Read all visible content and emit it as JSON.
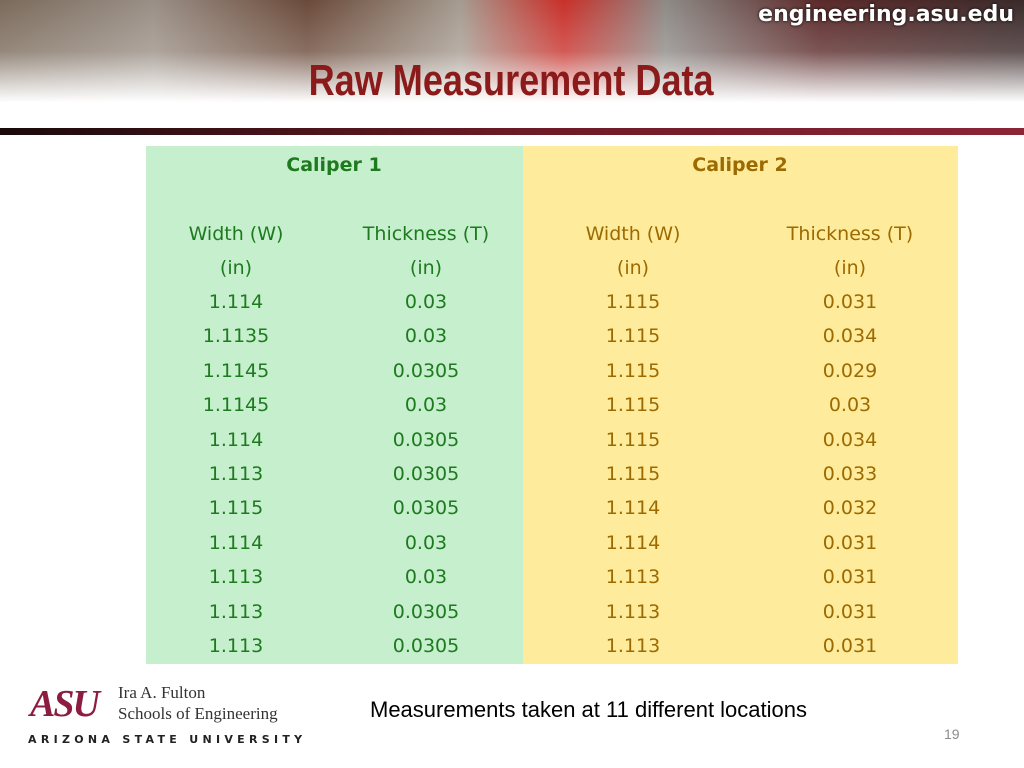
{
  "header": {
    "site": "engineering.asu.edu",
    "title": "Raw Measurement Data"
  },
  "table": {
    "groups": [
      "Caliper 1",
      "Caliper 2"
    ],
    "columns": [
      [
        "Width (W)",
        "(in)"
      ],
      [
        "Thickness (T)",
        "(in)"
      ],
      [
        "Width (W)",
        "(in)"
      ],
      [
        "Thickness (T)",
        "(in)"
      ]
    ],
    "rows": [
      [
        "1.114",
        "0.03",
        "1.115",
        "0.031"
      ],
      [
        "1.1135",
        "0.03",
        "1.115",
        "0.034"
      ],
      [
        "1.1145",
        "0.0305",
        "1.115",
        "0.029"
      ],
      [
        "1.1145",
        "0.03",
        "1.115",
        "0.03"
      ],
      [
        "1.114",
        "0.0305",
        "1.115",
        "0.034"
      ],
      [
        "1.113",
        "0.0305",
        "1.115",
        "0.033"
      ],
      [
        "1.115",
        "0.0305",
        "1.114",
        "0.032"
      ],
      [
        "1.114",
        "0.03",
        "1.114",
        "0.031"
      ],
      [
        "1.113",
        "0.03",
        "1.113",
        "0.031"
      ],
      [
        "1.113",
        "0.0305",
        "1.113",
        "0.031"
      ],
      [
        "1.113",
        "0.0305",
        "1.113",
        "0.031"
      ]
    ]
  },
  "footer": {
    "logo": {
      "mark": "ASU",
      "line1": "Ira A. Fulton",
      "line2": "Schools of Engineering",
      "university": "ARIZONA STATE UNIVERSITY"
    },
    "note": "Measurements taken at 11 different locations",
    "page_number": "19"
  }
}
